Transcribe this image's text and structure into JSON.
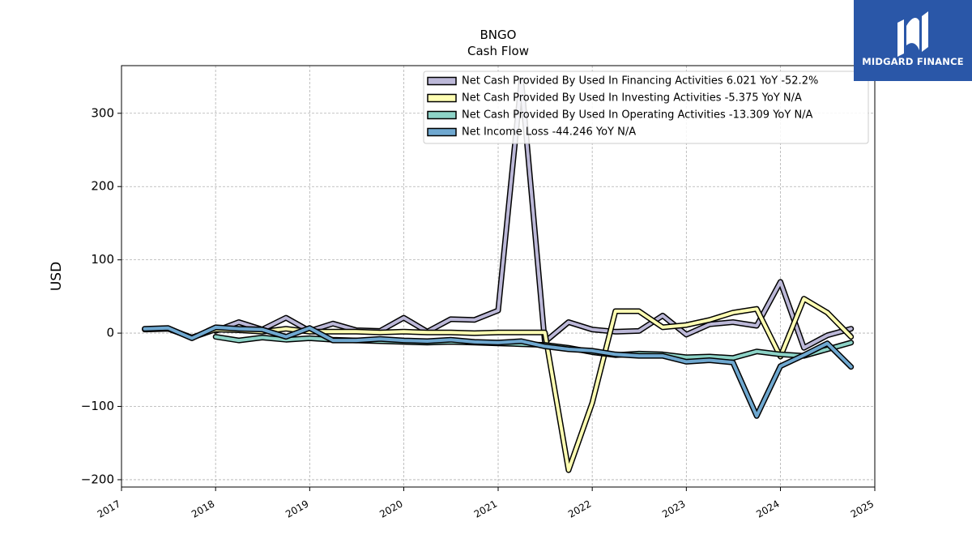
{
  "logo": {
    "text": "MIDGARD FINANCE",
    "icon": "midgard-finance-logo-icon",
    "bg": "#2a57a8"
  },
  "chart_data": {
    "type": "line",
    "title": "BNGO",
    "subtitle": "Cash Flow",
    "ylabel": "USD",
    "xlabel": "",
    "xlim": [
      "2017-01-01",
      "2025-01-01"
    ],
    "ylim": [
      -210,
      365
    ],
    "xticks": [
      "2017",
      "2018",
      "2019",
      "2020",
      "2021",
      "2022",
      "2023",
      "2024",
      "2025"
    ],
    "yticks": [
      -200,
      -100,
      0,
      100,
      200,
      300
    ],
    "grid": true,
    "legend_position": "top-right",
    "series": [
      {
        "name": "Net Cash Provided By Used In Financing Activities  6.021 YoY -52.2%",
        "color": "#bcb8d8",
        "x": [
          "2018-01-01",
          "2018-04-01",
          "2018-07-01",
          "2018-10-01",
          "2019-01-01",
          "2019-04-01",
          "2019-07-01",
          "2019-10-01",
          "2020-01-01",
          "2020-04-01",
          "2020-07-01",
          "2020-10-01",
          "2021-01-01",
          "2021-04-01",
          "2021-07-01",
          "2021-10-01",
          "2022-01-01",
          "2022-04-01",
          "2022-07-01",
          "2022-10-01",
          "2023-01-01",
          "2023-04-01",
          "2023-07-01",
          "2023-10-01",
          "2024-01-01",
          "2024-04-01",
          "2024-07-01",
          "2024-10-01"
        ],
        "y": [
          3,
          15,
          5,
          21,
          3,
          13,
          4,
          3,
          21,
          2,
          19,
          18,
          31,
          345,
          -12,
          15,
          5,
          2,
          3,
          24,
          -2,
          12,
          15,
          10,
          70,
          -20,
          -3,
          6
        ]
      },
      {
        "name": "Net Cash Provided By Used In Investing Activities  -5.375 YoY N/A",
        "color": "#ffffb3",
        "x": [
          "2017-04-01",
          "2017-07-01",
          "2017-10-01",
          "2018-01-01",
          "2018-04-01",
          "2018-07-01",
          "2018-10-01",
          "2019-01-01",
          "2019-04-01",
          "2019-07-01",
          "2019-10-01",
          "2020-01-01",
          "2020-04-01",
          "2020-07-01",
          "2020-10-01",
          "2021-01-01",
          "2021-04-01",
          "2021-07-01",
          "2021-10-01",
          "2022-01-01",
          "2022-04-01",
          "2022-07-01",
          "2022-10-01",
          "2023-01-01",
          "2023-04-01",
          "2023-07-01",
          "2023-10-01",
          "2024-01-01",
          "2024-04-01",
          "2024-07-01",
          "2024-10-01"
        ],
        "y": [
          5,
          6,
          -6,
          5,
          4,
          2,
          6,
          2,
          2,
          2,
          1,
          2,
          1,
          1,
          0,
          1,
          1,
          1,
          -187,
          -95,
          30,
          30,
          8,
          11,
          18,
          28,
          33,
          -32,
          47,
          28,
          -5
        ]
      },
      {
        "name": "Net Cash Provided By Used In Operating Activities  -13.309 YoY N/A",
        "color": "#8dd3c7",
        "x": [
          "2018-01-01",
          "2018-04-01",
          "2018-07-01",
          "2018-10-01",
          "2019-01-01",
          "2019-04-01",
          "2019-07-01",
          "2019-10-01",
          "2020-01-01",
          "2020-04-01",
          "2020-07-01",
          "2020-10-01",
          "2021-01-01",
          "2021-04-01",
          "2021-07-01",
          "2021-10-01",
          "2022-01-01",
          "2022-04-01",
          "2022-07-01",
          "2022-10-01",
          "2023-01-01",
          "2023-04-01",
          "2023-07-01",
          "2023-10-01",
          "2024-01-01",
          "2024-04-01",
          "2024-07-01",
          "2024-10-01"
        ],
        "y": [
          -5,
          -10,
          -6,
          -9,
          -7,
          -9,
          -10,
          -11,
          -12,
          -13,
          -12,
          -13,
          -14,
          -15,
          -16,
          -20,
          -26,
          -30,
          -28,
          -29,
          -33,
          -32,
          -34,
          -25,
          -29,
          -31,
          -22,
          -13
        ]
      },
      {
        "name": "Net Income Loss  -44.246 YoY N/A",
        "color": "#6fa8d0",
        "x": [
          "2017-04-01",
          "2017-07-01",
          "2017-10-01",
          "2018-01-01",
          "2018-04-01",
          "2018-07-01",
          "2018-10-01",
          "2019-01-01",
          "2019-04-01",
          "2019-07-01",
          "2019-10-01",
          "2020-01-01",
          "2020-04-01",
          "2020-07-01",
          "2020-10-01",
          "2021-01-01",
          "2021-04-01",
          "2021-07-01",
          "2021-10-01",
          "2022-01-01",
          "2022-04-01",
          "2022-07-01",
          "2022-10-01",
          "2023-01-01",
          "2023-04-01",
          "2023-07-01",
          "2023-10-01",
          "2024-01-01",
          "2024-04-01",
          "2024-07-01",
          "2024-10-01"
        ],
        "y": [
          6,
          7,
          -7,
          8,
          6,
          5,
          -5,
          7,
          -10,
          -10,
          -8,
          -10,
          -11,
          -9,
          -12,
          -13,
          -11,
          -18,
          -22,
          -24,
          -29,
          -31,
          -31,
          -39,
          -37,
          -40,
          -113,
          -45,
          -30,
          -14,
          -46
        ]
      }
    ]
  }
}
